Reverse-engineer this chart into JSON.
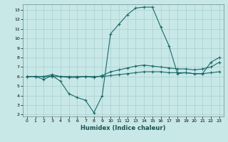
{
  "xlabel": "Humidex (Indice chaleur)",
  "bg_color": "#c8e8e8",
  "grid_color": "#a8cece",
  "line_color": "#1a6868",
  "xlim": [
    -0.5,
    23.5
  ],
  "ylim": [
    1.8,
    13.6
  ],
  "xticks": [
    0,
    1,
    2,
    3,
    4,
    5,
    6,
    7,
    8,
    9,
    10,
    11,
    12,
    13,
    14,
    15,
    16,
    17,
    18,
    19,
    20,
    21,
    22,
    23
  ],
  "yticks": [
    2,
    3,
    4,
    5,
    6,
    7,
    8,
    9,
    10,
    11,
    12,
    13
  ],
  "line1_x": [
    0,
    1,
    2,
    3,
    4,
    5,
    6,
    7,
    8,
    9,
    10,
    11,
    12,
    13,
    14,
    15,
    16,
    17,
    18,
    19,
    20,
    21,
    22,
    23
  ],
  "line1_y": [
    6.0,
    6.0,
    6.0,
    6.0,
    6.0,
    6.0,
    6.0,
    6.0,
    6.0,
    6.0,
    6.1,
    6.2,
    6.3,
    6.4,
    6.5,
    6.5,
    6.5,
    6.4,
    6.4,
    6.4,
    6.3,
    6.3,
    6.4,
    6.5
  ],
  "line2_x": [
    0,
    1,
    2,
    3,
    4,
    5,
    6,
    7,
    8,
    9,
    10,
    11,
    12,
    13,
    14,
    15,
    16,
    17,
    18,
    19,
    20,
    21,
    22,
    23
  ],
  "line2_y": [
    6.0,
    6.0,
    6.0,
    6.2,
    6.0,
    5.9,
    5.9,
    6.0,
    5.9,
    6.1,
    6.5,
    6.7,
    6.9,
    7.1,
    7.2,
    7.1,
    7.0,
    6.9,
    6.8,
    6.8,
    6.7,
    6.8,
    7.0,
    7.5
  ],
  "line3_x": [
    0,
    1,
    2,
    3,
    4,
    5,
    6,
    7,
    8,
    9,
    10,
    11,
    12,
    13,
    14,
    15,
    16,
    17,
    18,
    19,
    20,
    21,
    22,
    23
  ],
  "line3_y": [
    6.0,
    6.0,
    5.7,
    6.1,
    5.5,
    4.2,
    3.8,
    3.5,
    2.2,
    4.0,
    10.5,
    11.5,
    12.5,
    13.2,
    13.3,
    13.3,
    11.2,
    9.2,
    6.3,
    6.4,
    6.3,
    6.3,
    7.5,
    8.0
  ]
}
